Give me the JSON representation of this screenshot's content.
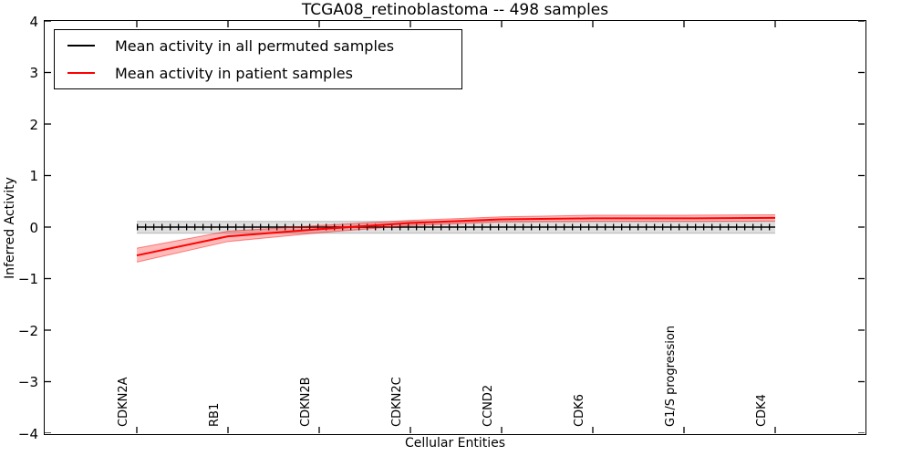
{
  "title": "TCGA08_retinoblastoma -- 498 samples",
  "legend": {
    "items": [
      {
        "label": "Mean activity in all permuted samples",
        "color": "#000000"
      },
      {
        "label": "Mean activity in patient samples",
        "color": "#ff0000"
      }
    ]
  },
  "chart_data": {
    "type": "line",
    "title": "TCGA08_retinoblastoma -- 498 samples",
    "xlabel": "Cellular Entities",
    "ylabel": "Inferred Activity",
    "ylim": [
      -4,
      4
    ],
    "yticks": [
      4,
      3,
      2,
      1,
      0,
      -1,
      -2,
      -3,
      -4
    ],
    "ytick_labels": [
      "4",
      "3",
      "2",
      "1",
      "0",
      "−1",
      "−2",
      "−3",
      "−4"
    ],
    "categories": [
      "CDKN2A",
      "RB1",
      "CDKN2B",
      "CDKN2C",
      "CCND2",
      "CDK6",
      "G1/S progression",
      "CDK4"
    ],
    "grid": false,
    "legend_position": "upper left",
    "series": [
      {
        "name": "Mean activity in all permuted samples",
        "color": "#000000",
        "line_width": 1.5,
        "tick_markers": true,
        "values": [
          0,
          0,
          0,
          0,
          0,
          0,
          0,
          0
        ],
        "band_upper": [
          0.11,
          0.11,
          0.11,
          0.11,
          0.11,
          0.11,
          0.11,
          0.11
        ],
        "band_lower": [
          -0.12,
          -0.12,
          -0.12,
          -0.12,
          -0.12,
          -0.12,
          -0.12,
          -0.12
        ],
        "band_fill": "rgba(0,0,0,0.13)",
        "band_edge": "rgba(0,0,0,0.22)"
      },
      {
        "name": "Mean activity in patient samples",
        "color": "#ff0000",
        "line_width": 2,
        "tick_markers": false,
        "values": [
          -0.55,
          -0.18,
          -0.04,
          0.08,
          0.15,
          0.17,
          0.17,
          0.18
        ],
        "band_upper": [
          -0.41,
          -0.08,
          0.03,
          0.13,
          0.2,
          0.23,
          0.23,
          0.24
        ],
        "band_lower": [
          -0.68,
          -0.28,
          -0.11,
          0.03,
          0.1,
          0.11,
          0.11,
          0.12
        ],
        "band_fill": "rgba(255,0,0,0.27)",
        "band_edge": "rgba(255,0,0,0.45)"
      }
    ]
  }
}
